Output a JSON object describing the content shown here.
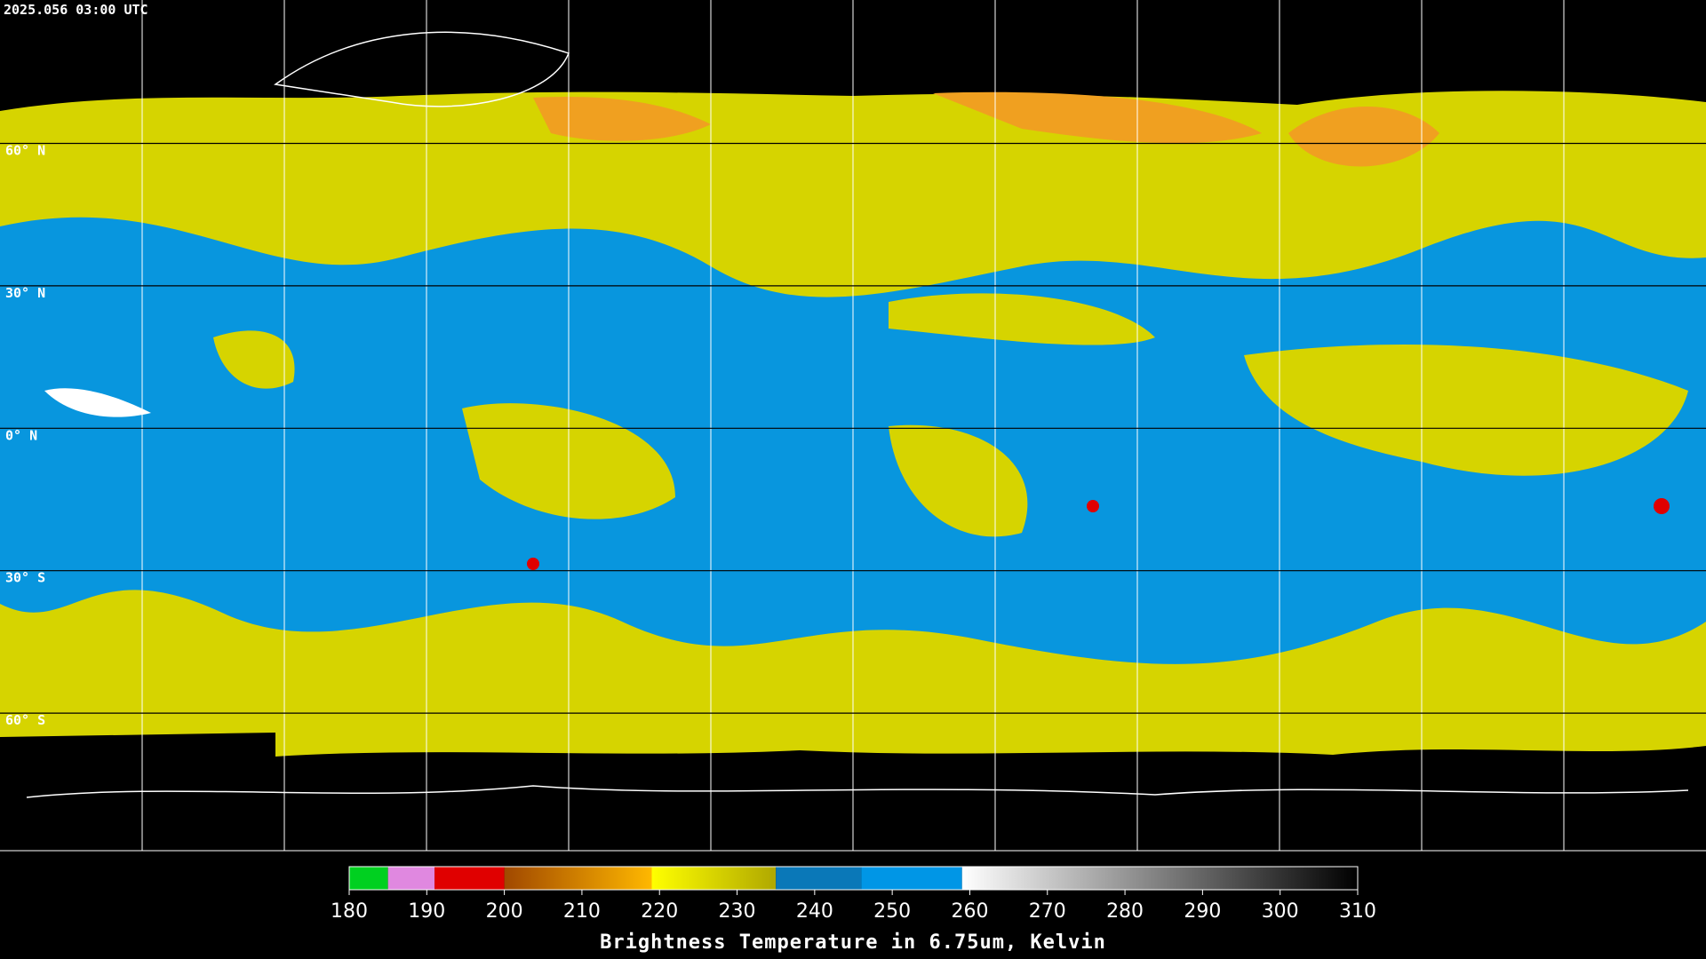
{
  "timestamp": "2025.056 03:00 UTC",
  "map": {
    "lat_labels": [
      "60° N",
      "30° N",
      "0° N",
      "30° S",
      "60° S"
    ]
  },
  "colorbar": {
    "range": [
      180,
      310
    ],
    "ticks": [
      180,
      190,
      200,
      210,
      220,
      230,
      240,
      250,
      260,
      270,
      280,
      290,
      300,
      310
    ],
    "stops": [
      {
        "from": 180,
        "to": 185,
        "color": "#00d020",
        "color_end": "#00d020"
      },
      {
        "from": 185,
        "to": 191,
        "color": "#e088e0",
        "color_end": "#e088e0"
      },
      {
        "from": 191,
        "to": 200,
        "color": "#e00000",
        "color_end": "#e00000"
      },
      {
        "from": 200,
        "to": 219,
        "color": "#a04800",
        "color_end": "#ffb800"
      },
      {
        "from": 219,
        "to": 235,
        "color": "#ffff00",
        "color_end": "#b0a800"
      },
      {
        "from": 235,
        "to": 246,
        "color": "#0a78b8",
        "color_end": "#0a78b8"
      },
      {
        "from": 246,
        "to": 259,
        "color": "#0096e6",
        "color_end": "#0096e6"
      },
      {
        "from": 259,
        "to": 310,
        "color": "#ffffff",
        "color_end": "#000000"
      }
    ],
    "label": "Brightness Temperature in 6.75um, Kelvin"
  }
}
